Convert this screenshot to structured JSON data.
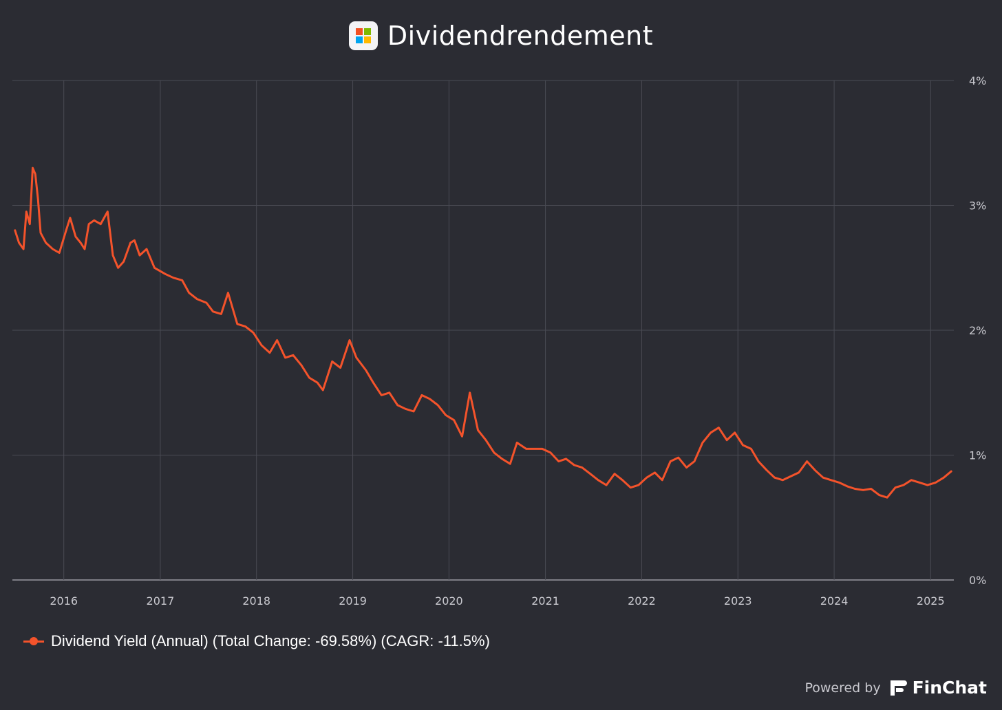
{
  "header": {
    "title": "Dividendrendement",
    "logo_icon": "microsoft-logo-icon",
    "logo_colors": [
      "#f25022",
      "#7fba00",
      "#00a4ef",
      "#ffb900"
    ]
  },
  "legend": {
    "label": "Dividend Yield (Annual) (Total Change: -69.58%) (CAGR: -11.5%)",
    "marker_icon": "line-dot-marker-icon"
  },
  "footer": {
    "powered_by": "Powered by",
    "brand": "FinChat",
    "brand_icon": "finchat-logo-icon"
  },
  "colors": {
    "background": "#2b2c33",
    "series": "#f4532b",
    "grid": "#4a4b54",
    "axis_text": "#c9c9cf"
  },
  "chart_data": {
    "type": "line",
    "title": "Dividendrendement",
    "xlabel": "",
    "ylabel": "",
    "x_ticks": [
      "2016",
      "2017",
      "2018",
      "2019",
      "2020",
      "2021",
      "2022",
      "2023",
      "2024",
      "2025"
    ],
    "y_ticks": [
      "0%",
      "1%",
      "2%",
      "3%",
      "4%"
    ],
    "ylim": [
      0,
      4
    ],
    "xlim": [
      "2015-06-20",
      "2025-03-30"
    ],
    "grid": true,
    "y_axis_position": "right",
    "legend_position": "bottom-left",
    "series": [
      {
        "name": "Dividend Yield (Annual) (Total Change: -69.58%) (CAGR: -11.5%)",
        "color": "#f4532b",
        "points": [
          [
            "2015-06-30",
            2.8
          ],
          [
            "2015-07-15",
            2.7
          ],
          [
            "2015-08-01",
            2.65
          ],
          [
            "2015-08-12",
            2.95
          ],
          [
            "2015-08-25",
            2.85
          ],
          [
            "2015-09-05",
            3.3
          ],
          [
            "2015-09-15",
            3.25
          ],
          [
            "2015-09-25",
            3.05
          ],
          [
            "2015-10-05",
            2.78
          ],
          [
            "2015-10-25",
            2.7
          ],
          [
            "2015-11-20",
            2.65
          ],
          [
            "2015-12-15",
            2.62
          ],
          [
            "2016-01-10",
            2.8
          ],
          [
            "2016-01-25",
            2.9
          ],
          [
            "2016-02-15",
            2.75
          ],
          [
            "2016-03-05",
            2.7
          ],
          [
            "2016-03-20",
            2.65
          ],
          [
            "2016-04-05",
            2.85
          ],
          [
            "2016-04-25",
            2.88
          ],
          [
            "2016-05-20",
            2.85
          ],
          [
            "2016-06-15",
            2.95
          ],
          [
            "2016-07-05",
            2.6
          ],
          [
            "2016-07-25",
            2.5
          ],
          [
            "2016-08-15",
            2.55
          ],
          [
            "2016-09-10",
            2.7
          ],
          [
            "2016-09-25",
            2.72
          ],
          [
            "2016-10-15",
            2.6
          ],
          [
            "2016-11-10",
            2.65
          ],
          [
            "2016-12-10",
            2.5
          ],
          [
            "2017-01-20",
            2.45
          ],
          [
            "2017-02-20",
            2.42
          ],
          [
            "2017-03-25",
            2.4
          ],
          [
            "2017-04-20",
            2.3
          ],
          [
            "2017-05-20",
            2.25
          ],
          [
            "2017-06-25",
            2.22
          ],
          [
            "2017-07-20",
            2.15
          ],
          [
            "2017-08-20",
            2.13
          ],
          [
            "2017-09-15",
            2.3
          ],
          [
            "2017-10-20",
            2.05
          ],
          [
            "2017-11-20",
            2.03
          ],
          [
            "2017-12-20",
            1.98
          ],
          [
            "2018-01-20",
            1.88
          ],
          [
            "2018-02-20",
            1.82
          ],
          [
            "2018-03-20",
            1.92
          ],
          [
            "2018-04-20",
            1.78
          ],
          [
            "2018-05-20",
            1.8
          ],
          [
            "2018-06-20",
            1.72
          ],
          [
            "2018-07-20",
            1.62
          ],
          [
            "2018-08-20",
            1.58
          ],
          [
            "2018-09-10",
            1.52
          ],
          [
            "2018-10-15",
            1.75
          ],
          [
            "2018-11-15",
            1.7
          ],
          [
            "2018-12-20",
            1.92
          ],
          [
            "2019-01-15",
            1.78
          ],
          [
            "2019-02-20",
            1.68
          ],
          [
            "2019-03-20",
            1.58
          ],
          [
            "2019-04-20",
            1.48
          ],
          [
            "2019-05-20",
            1.5
          ],
          [
            "2019-06-20",
            1.4
          ],
          [
            "2019-07-20",
            1.37
          ],
          [
            "2019-08-20",
            1.35
          ],
          [
            "2019-09-20",
            1.48
          ],
          [
            "2019-10-20",
            1.45
          ],
          [
            "2019-11-20",
            1.4
          ],
          [
            "2019-12-20",
            1.32
          ],
          [
            "2020-01-20",
            1.28
          ],
          [
            "2020-02-20",
            1.15
          ],
          [
            "2020-03-20",
            1.5
          ],
          [
            "2020-04-20",
            1.2
          ],
          [
            "2020-05-20",
            1.12
          ],
          [
            "2020-06-20",
            1.02
          ],
          [
            "2020-07-20",
            0.97
          ],
          [
            "2020-08-20",
            0.93
          ],
          [
            "2020-09-15",
            1.1
          ],
          [
            "2020-10-20",
            1.05
          ],
          [
            "2020-11-20",
            1.05
          ],
          [
            "2020-12-20",
            1.05
          ],
          [
            "2021-01-20",
            1.02
          ],
          [
            "2021-02-20",
            0.95
          ],
          [
            "2021-03-20",
            0.97
          ],
          [
            "2021-04-20",
            0.92
          ],
          [
            "2021-05-20",
            0.9
          ],
          [
            "2021-06-20",
            0.85
          ],
          [
            "2021-07-20",
            0.8
          ],
          [
            "2021-08-20",
            0.76
          ],
          [
            "2021-09-20",
            0.85
          ],
          [
            "2021-10-20",
            0.8
          ],
          [
            "2021-11-20",
            0.74
          ],
          [
            "2021-12-20",
            0.76
          ],
          [
            "2022-01-20",
            0.82
          ],
          [
            "2022-02-20",
            0.86
          ],
          [
            "2022-03-20",
            0.8
          ],
          [
            "2022-04-20",
            0.95
          ],
          [
            "2022-05-20",
            0.98
          ],
          [
            "2022-06-20",
            0.9
          ],
          [
            "2022-07-20",
            0.95
          ],
          [
            "2022-08-20",
            1.1
          ],
          [
            "2022-09-20",
            1.18
          ],
          [
            "2022-10-20",
            1.22
          ],
          [
            "2022-11-20",
            1.12
          ],
          [
            "2022-12-20",
            1.18
          ],
          [
            "2023-01-20",
            1.08
          ],
          [
            "2023-02-20",
            1.05
          ],
          [
            "2023-03-20",
            0.95
          ],
          [
            "2023-04-20",
            0.88
          ],
          [
            "2023-05-20",
            0.82
          ],
          [
            "2023-06-20",
            0.8
          ],
          [
            "2023-07-20",
            0.83
          ],
          [
            "2023-08-20",
            0.86
          ],
          [
            "2023-09-20",
            0.95
          ],
          [
            "2023-10-20",
            0.88
          ],
          [
            "2023-11-20",
            0.82
          ],
          [
            "2023-12-20",
            0.8
          ],
          [
            "2024-01-20",
            0.78
          ],
          [
            "2024-02-20",
            0.75
          ],
          [
            "2024-03-20",
            0.73
          ],
          [
            "2024-04-20",
            0.72
          ],
          [
            "2024-05-20",
            0.73
          ],
          [
            "2024-06-20",
            0.68
          ],
          [
            "2024-07-20",
            0.66
          ],
          [
            "2024-08-20",
            0.74
          ],
          [
            "2024-09-20",
            0.76
          ],
          [
            "2024-10-20",
            0.8
          ],
          [
            "2024-11-20",
            0.78
          ],
          [
            "2024-12-20",
            0.76
          ],
          [
            "2025-01-20",
            0.78
          ],
          [
            "2025-02-20",
            0.82
          ],
          [
            "2025-03-20",
            0.87
          ]
        ]
      }
    ]
  }
}
